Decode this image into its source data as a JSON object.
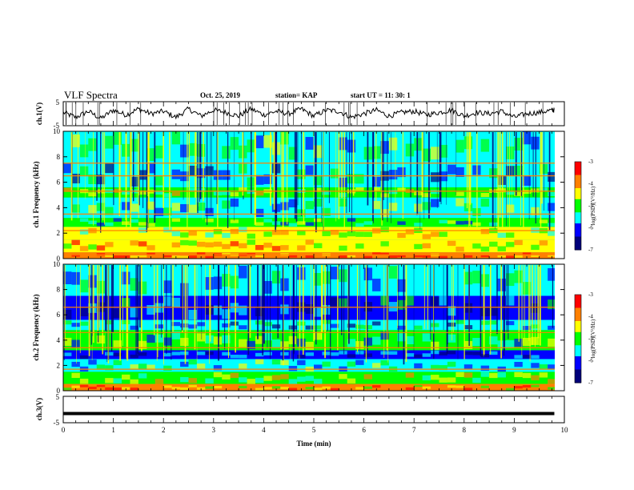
{
  "header": {
    "title": "VLF Spectra",
    "date": "Oct. 25, 2019",
    "station": "station= KAP",
    "start_ut": "start  UT =   11: 30: 1"
  },
  "colors": {
    "axes": "#000000",
    "spectrogram_bg": "#00a0ff",
    "colormap": [
      "#00007a",
      "#0000ff",
      "#00ffff",
      "#00ff00",
      "#ffff00",
      "#ff8000",
      "#ff0000",
      "#ffffff"
    ]
  },
  "chart_data": [
    {
      "type": "line",
      "panel": "ch1-waveform",
      "ylabel": "ch.1(V)",
      "ylim": [
        -5,
        5
      ],
      "yticks": [
        "5",
        "-5"
      ],
      "xlim": [
        0,
        10
      ],
      "series": [
        {
          "x": [
            0,
            0.25,
            0.5,
            0.75,
            1.0,
            1.25,
            1.5,
            1.75,
            2.0,
            2.25,
            2.5,
            2.75,
            3.0,
            3.25,
            3.5,
            3.75,
            4.0,
            4.25,
            4.5,
            4.75,
            5.0,
            5.25,
            5.5,
            5.75,
            6.0,
            6.25,
            6.5,
            6.75,
            7.0,
            7.25,
            7.5,
            7.75,
            8.0,
            8.25,
            8.5,
            8.75,
            9.0,
            9.25,
            9.5,
            9.75
          ],
          "values": [
            0.5,
            -1.5,
            1,
            -2,
            1.5,
            -0.5,
            2,
            0,
            1,
            -1.5,
            2,
            -1,
            1.5,
            0.5,
            -1,
            2,
            -0.5,
            1,
            0,
            2,
            -1,
            1.5,
            1,
            -1.5,
            0,
            1.5,
            -1,
            0.5,
            1,
            -0.5,
            0.5,
            1.5,
            -1,
            0.5,
            0,
            1,
            -1.5,
            0,
            0.5,
            1.5
          ]
        }
      ]
    },
    {
      "type": "heatmap",
      "panel": "ch1-spectrogram",
      "ylabel": "ch.1 Frequency  (kHz)",
      "ylim": [
        0,
        10
      ],
      "yticks": [
        "0",
        "2",
        "4",
        "6",
        "8",
        "10"
      ],
      "xlim": [
        0,
        10
      ],
      "zlim": [
        -7,
        -3
      ],
      "colorbar_label": "log(PSD)(V²/Hz)",
      "colorbar_ticks": [
        "-3",
        "-4",
        "-5",
        "-6",
        "-7"
      ],
      "bands": [
        {
          "f": [
            0,
            0.5
          ],
          "level": -3.8
        },
        {
          "f": [
            0.5,
            1.5
          ],
          "level": -4.3
        },
        {
          "f": [
            1.5,
            2.5
          ],
          "level": -4.6
        },
        {
          "f": [
            2.5,
            3.2
          ],
          "level": -5.2
        },
        {
          "f": [
            3.2,
            4.8
          ],
          "level": -5.3
        },
        {
          "f": [
            4.8,
            5.6
          ],
          "level": -4.9
        },
        {
          "f": [
            5.6,
            7.5
          ],
          "level": -5.8
        },
        {
          "f": [
            7.5,
            10
          ],
          "level": -5.4
        }
      ],
      "tones_khz": [
        0.3,
        2.2,
        3.5,
        5.3,
        6.5,
        7.5
      ]
    },
    {
      "type": "heatmap",
      "panel": "ch2-spectrogram",
      "ylabel": "ch.2 Frequency  (kHz)",
      "ylim": [
        0,
        10
      ],
      "yticks": [
        "0",
        "2",
        "4",
        "6",
        "8",
        "10"
      ],
      "xlim": [
        0,
        10
      ],
      "zlim": [
        -7,
        -3
      ],
      "colorbar_label": "log(PSD)(V²/Hz)",
      "colorbar_ticks": [
        "-3",
        "-4",
        "-5",
        "-6",
        "-7"
      ],
      "bands": [
        {
          "f": [
            0,
            0.5
          ],
          "level": -4.0
        },
        {
          "f": [
            0.5,
            1.5
          ],
          "level": -4.8
        },
        {
          "f": [
            1.5,
            2.5
          ],
          "level": -5.4
        },
        {
          "f": [
            2.5,
            3.2
          ],
          "level": -6.3
        },
        {
          "f": [
            3.2,
            4.8
          ],
          "level": -5.2
        },
        {
          "f": [
            4.8,
            5.6
          ],
          "level": -5.8
        },
        {
          "f": [
            5.6,
            7.5
          ],
          "level": -6.0
        },
        {
          "f": [
            7.5,
            10
          ],
          "level": -5.6
        }
      ],
      "tones_khz": [
        0.5,
        1.7,
        3.4,
        4.6,
        6.6
      ]
    },
    {
      "type": "line",
      "panel": "ch3-waveform",
      "ylabel": "ch.3(V)",
      "xlabel": "Time  (min)",
      "ylim": [
        -5,
        5
      ],
      "yticks": [
        "5",
        "-5"
      ],
      "xlim": [
        0,
        10
      ],
      "xticks": [
        "0",
        "1",
        "2",
        "3",
        "4",
        "5",
        "6",
        "7",
        "8",
        "9",
        "10"
      ],
      "series": [
        {
          "x": [
            0,
            9.8
          ],
          "values": [
            -1.5,
            -1.5
          ]
        }
      ]
    }
  ]
}
